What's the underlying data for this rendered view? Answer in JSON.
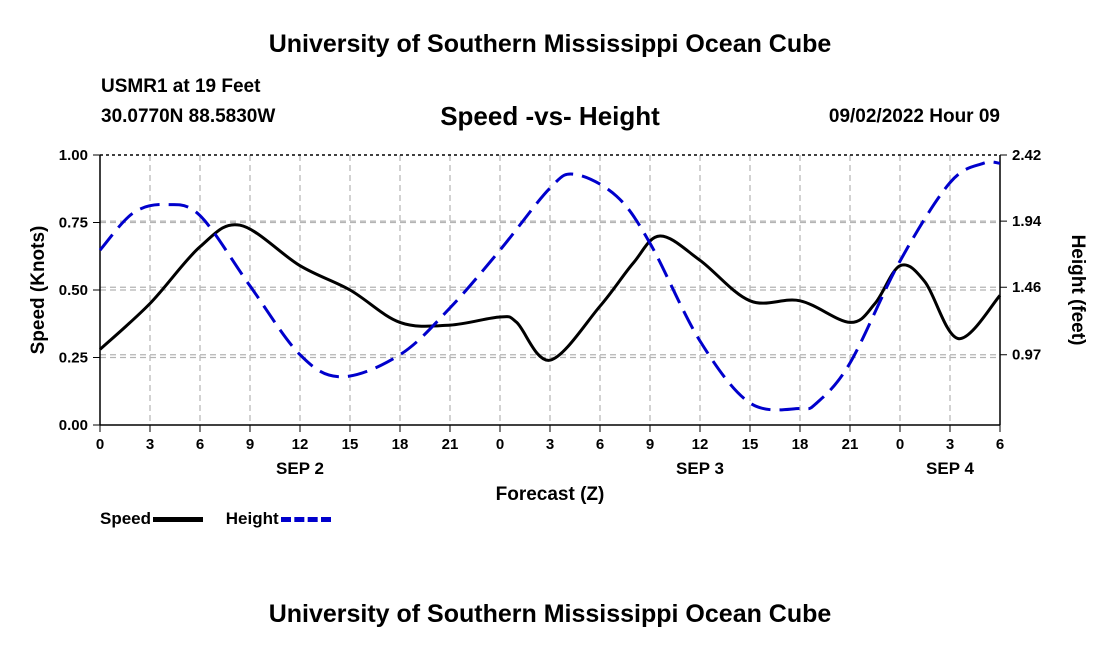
{
  "header": {
    "title": "University of Southern Mississippi Ocean Cube",
    "station": "USMR1 at 19 Feet",
    "coordinates": "30.0770N  88.5830W",
    "subtitle": "Speed -vs- Height",
    "datetime": "09/02/2022 Hour 09"
  },
  "footer": {
    "title": "University of Southern Mississippi Ocean Cube"
  },
  "legend": {
    "speed_label": "Speed",
    "height_label": "Height"
  },
  "colors": {
    "speed": "#000000",
    "height": "#0000cc",
    "grid": "#b4b4b4"
  },
  "chart_data": {
    "type": "line",
    "title": "Speed -vs- Height",
    "xlabel": "Forecast (Z)",
    "ylabel": "Speed (Knots)",
    "y2label": "Height (feet)",
    "x_range": [
      0,
      54
    ],
    "ylim": [
      0,
      1.0
    ],
    "y2lim": [
      0.46,
      2.42
    ],
    "x_tick_values": [
      0,
      3,
      6,
      9,
      12,
      15,
      18,
      21,
      24,
      27,
      30,
      33,
      36,
      39,
      42,
      45,
      48,
      51,
      54
    ],
    "x_tick_labels": [
      "0",
      "3",
      "6",
      "9",
      "12",
      "15",
      "18",
      "21",
      "0",
      "3",
      "6",
      "9",
      "12",
      "15",
      "18",
      "21",
      "0",
      "3",
      "6"
    ],
    "date_labels": [
      {
        "x": 12,
        "label": "SEP 2"
      },
      {
        "x": 36,
        "label": "SEP 3"
      },
      {
        "x": 51,
        "label": "SEP 4"
      }
    ],
    "y_ticks": [
      {
        "value": 0.0,
        "label": "0.00"
      },
      {
        "value": 0.25,
        "label": "0.25"
      },
      {
        "value": 0.5,
        "label": "0.50"
      },
      {
        "value": 0.75,
        "label": "0.75"
      },
      {
        "value": 1.0,
        "label": "1.00"
      }
    ],
    "y2_ticks": [
      {
        "value": 0.97,
        "label": "0.97"
      },
      {
        "value": 1.46,
        "label": "1.46"
      },
      {
        "value": 1.94,
        "label": "1.94"
      },
      {
        "value": 2.42,
        "label": "2.42"
      }
    ],
    "grid": true,
    "series": [
      {
        "name": "Speed",
        "axis": "left",
        "style": "solid",
        "x": [
          0,
          3,
          6,
          8.4,
          12,
          15,
          18,
          21,
          24,
          25,
          27,
          30,
          32,
          33.6,
          36,
          39,
          42,
          45,
          46.5,
          48,
          49.5,
          51.5,
          54
        ],
        "y": [
          0.28,
          0.45,
          0.66,
          0.74,
          0.59,
          0.5,
          0.38,
          0.37,
          0.4,
          0.38,
          0.24,
          0.44,
          0.6,
          0.7,
          0.61,
          0.46,
          0.46,
          0.38,
          0.45,
          0.59,
          0.53,
          0.32,
          0.48
        ]
      },
      {
        "name": "Height",
        "axis": "right",
        "style": "dashed",
        "x": [
          0,
          2,
          4,
          6,
          9,
          12,
          14.5,
          18,
          21,
          24,
          27,
          28.5,
          31,
          33,
          36,
          39,
          42,
          43,
          45,
          48,
          51,
          53,
          54
        ],
        "y": [
          1.73,
          2.0,
          2.06,
          1.98,
          1.47,
          0.97,
          0.81,
          0.97,
          1.31,
          1.73,
          2.18,
          2.28,
          2.12,
          1.78,
          1.07,
          0.62,
          0.58,
          0.62,
          0.91,
          1.65,
          2.22,
          2.36,
          2.36
        ]
      }
    ]
  }
}
